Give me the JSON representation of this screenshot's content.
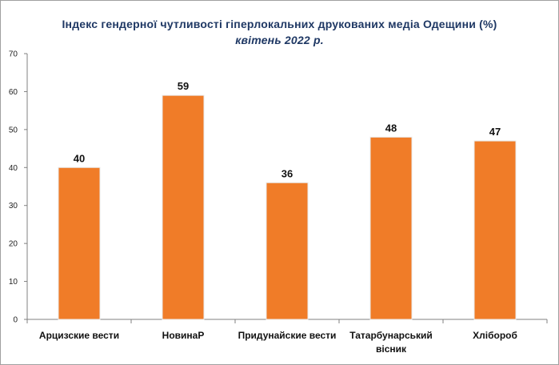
{
  "chart_data": {
    "type": "bar",
    "title": "Індекс гендерної чутливості гіперлокальних  друкованих медіа Одещини (%)",
    "subtitle": "квітень 2022 р.",
    "categories": [
      "Арцизские вести",
      "НовинаР",
      "Придунайские вести",
      "Татарбунарський вісник",
      "Хлібороб"
    ],
    "values": [
      40,
      59,
      36,
      48,
      47
    ],
    "ylim": [
      0,
      70
    ],
    "yticks": [
      0,
      10,
      20,
      30,
      40,
      50,
      60,
      70
    ],
    "xlabel": "",
    "ylabel": "",
    "grid": false,
    "bar_color": "#f07c28",
    "bar_edge_color": "#e8e8e8"
  }
}
